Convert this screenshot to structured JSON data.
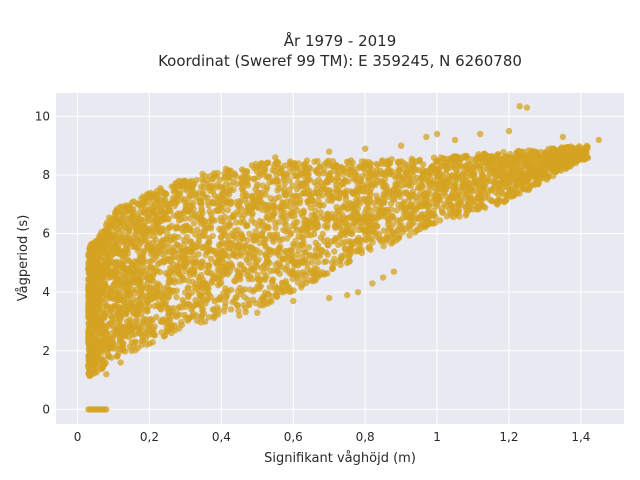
{
  "chart_data": {
    "type": "scatter",
    "title": "År 1979 - 2019",
    "subtitle": "Koordinat (Sweref 99 TM): E 359245, N 6260780",
    "xlabel": "Signifikant våghöjd (m)",
    "ylabel": "Vågperiod (s)",
    "xlim": [
      -0.06,
      1.52
    ],
    "ylim": [
      -0.5,
      10.8
    ],
    "x_ticks": [
      0,
      0.2,
      0.4,
      0.6,
      0.8,
      1,
      1.2,
      1.4
    ],
    "x_tick_labels": [
      "0",
      "0,2",
      "0,4",
      "0,6",
      "0,8",
      "1",
      "1,2",
      "1,4"
    ],
    "y_ticks": [
      0,
      2,
      4,
      6,
      8,
      10
    ],
    "y_tick_labels": [
      "0",
      "2",
      "4",
      "6",
      "8",
      "10"
    ],
    "grid": true,
    "point_color": "#d4a322",
    "plot_background": "#e9e9f1",
    "grid_color": "#ffffff",
    "band_lower": [
      [
        0.03,
        1.1
      ],
      [
        0.06,
        1.3
      ],
      [
        0.1,
        1.7
      ],
      [
        0.2,
        2.2
      ],
      [
        0.3,
        2.8
      ],
      [
        0.4,
        3.1
      ],
      [
        0.5,
        3.4
      ],
      [
        0.6,
        4.0
      ],
      [
        0.8,
        5.3
      ],
      [
        1.0,
        6.3
      ],
      [
        1.2,
        7.1
      ],
      [
        1.4,
        8.5
      ]
    ],
    "band_upper": [
      [
        0.03,
        5.5
      ],
      [
        0.06,
        6.0
      ],
      [
        0.1,
        6.8
      ],
      [
        0.2,
        7.4
      ],
      [
        0.3,
        7.9
      ],
      [
        0.4,
        8.2
      ],
      [
        0.5,
        8.4
      ],
      [
        0.6,
        8.5
      ],
      [
        0.8,
        8.5
      ],
      [
        1.0,
        8.6
      ],
      [
        1.2,
        8.8
      ],
      [
        1.4,
        9.0
      ]
    ],
    "highlight_points": [
      [
        1.23,
        10.35
      ],
      [
        1.25,
        10.3
      ],
      [
        1.35,
        9.3
      ],
      [
        1.45,
        9.2
      ],
      [
        1.2,
        9.5
      ],
      [
        1.0,
        9.4
      ],
      [
        0.97,
        9.3
      ],
      [
        0.9,
        9.0
      ],
      [
        1.05,
        9.2
      ],
      [
        1.12,
        9.4
      ],
      [
        0.8,
        8.9
      ],
      [
        0.7,
        8.8
      ],
      [
        0.55,
        8.6
      ],
      [
        0.88,
        4.7
      ],
      [
        0.85,
        4.5
      ],
      [
        0.82,
        4.3
      ],
      [
        0.78,
        4.0
      ],
      [
        0.75,
        3.9
      ],
      [
        0.7,
        3.8
      ],
      [
        0.6,
        3.7
      ],
      [
        0.5,
        3.3
      ],
      [
        0.45,
        3.2
      ],
      [
        0.15,
        2.0
      ],
      [
        0.12,
        1.6
      ],
      [
        0.08,
        1.2
      ]
    ],
    "zero_points_x": [
      0.03,
      0.035,
      0.04,
      0.045,
      0.05,
      0.055,
      0.06,
      0.065,
      0.07,
      0.075,
      0.08
    ]
  }
}
